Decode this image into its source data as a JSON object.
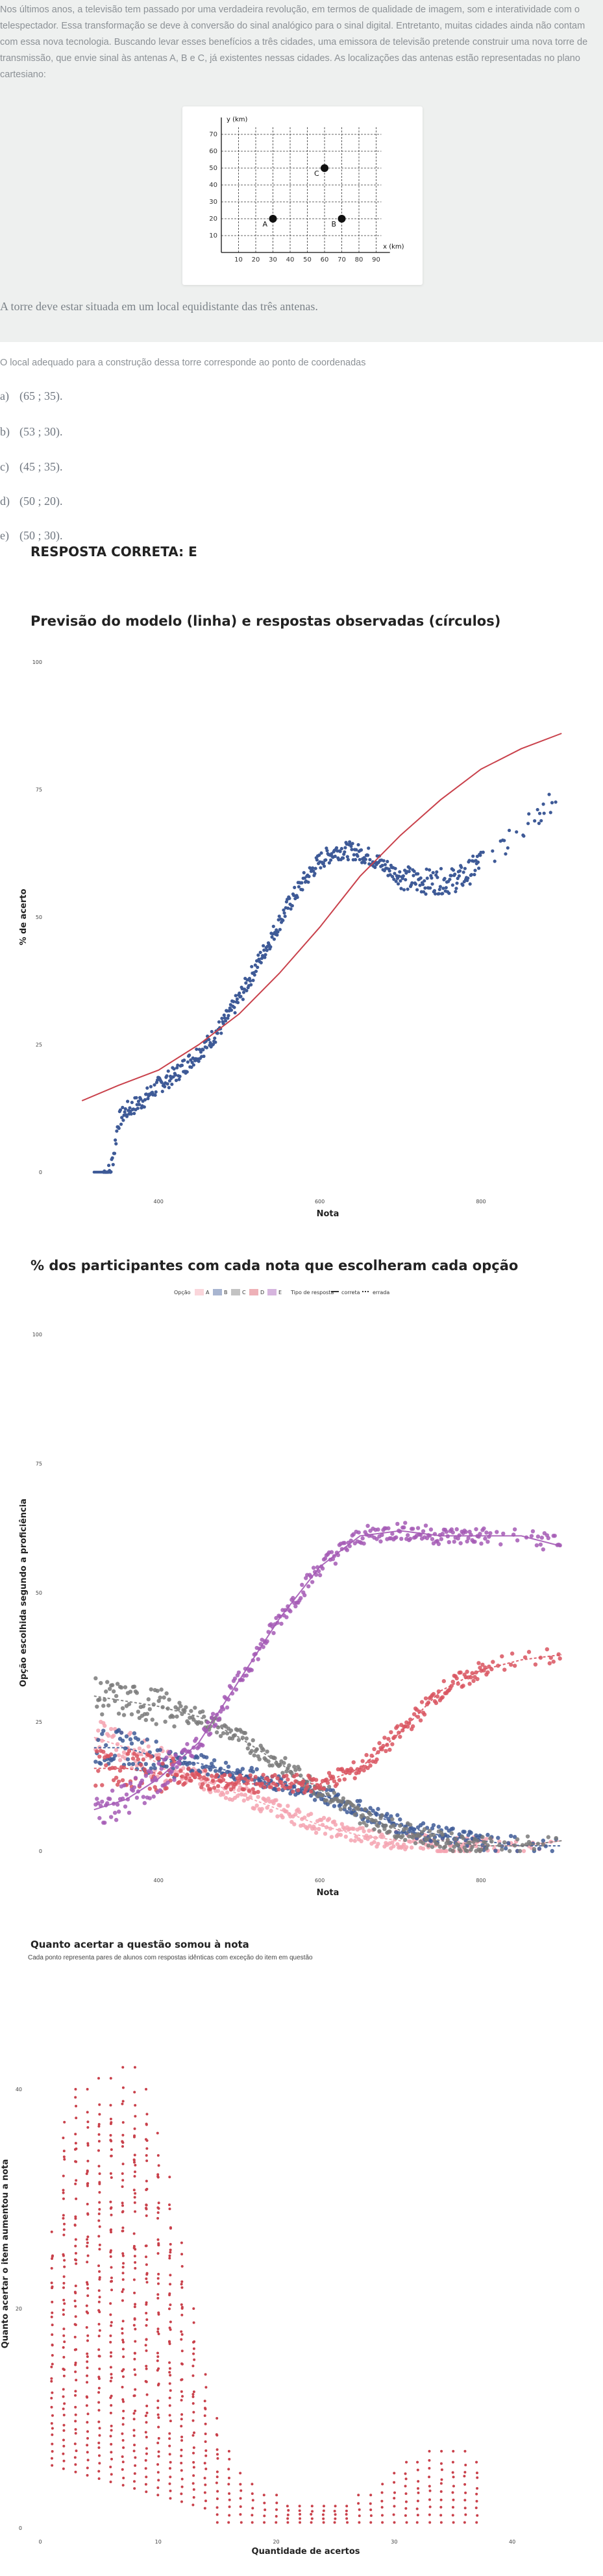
{
  "question": {
    "text": "Nos últimos anos, a televisão tem passado por uma verdadeira revolução, em termos de qualidade de imagem, som e interatividade com o telespectador. Essa transformação se deve à conversão do sinal analógico para o sinal digital. Entretanto, muitas cidades ainda não contam com essa nova tecnologia. Buscando levar esses benefícios a três cidades, uma emissora de televisão pretende construir uma nova torre de transmissão, que envie sinal às antenas A, B e C, já existentes nessas cidades. As localizações das antenas estão representadas no plano cartesiano:",
    "statement": "A torre deve estar situada em um local equidistante das três antenas.",
    "prompt": "O local adequado para a construção dessa torre corresponde ao ponto de coordenadas",
    "options": [
      {
        "letter": "a)",
        "text": "(65 ; 35)."
      },
      {
        "letter": "b)",
        "text": "(53 ; 30)."
      },
      {
        "letter": "c)",
        "text": "(45 ; 35)."
      },
      {
        "letter": "d)",
        "text": "(50 ; 20)."
      },
      {
        "letter": "e)",
        "text": "(50 ; 30)."
      }
    ],
    "correct": "RESPOSTA CORRETA: E"
  },
  "cartesian": {
    "y_axis_label": "y (km)",
    "x_axis_label": "x (km)",
    "x_ticks": [
      10,
      20,
      30,
      40,
      50,
      60,
      70,
      80,
      90
    ],
    "y_ticks": [
      10,
      20,
      30,
      40,
      50,
      60,
      70
    ],
    "points": [
      {
        "label": "A",
        "x": 30,
        "y": 20
      },
      {
        "label": "B",
        "x": 70,
        "y": 20
      },
      {
        "label": "C",
        "x": 60,
        "y": 50
      }
    ]
  },
  "chart_data": [
    {
      "type": "scatter",
      "title": "Previsão do modelo (linha) e respostas observadas (círculos)",
      "xlabel": "Nota",
      "ylabel": "% de acerto",
      "x_tick_labels": [
        "400",
        "600",
        "800"
      ],
      "y_tick_labels": [
        "0",
        "25",
        "50",
        "75",
        "100"
      ],
      "xlim": [
        300,
        920
      ],
      "ylim": [
        0,
        100
      ],
      "model_line": {
        "color": "#c9414b",
        "x": [
          305,
          350,
          400,
          450,
          500,
          550,
          600,
          650,
          700,
          750,
          800,
          850,
          900
        ],
        "y": [
          14,
          17,
          20,
          25,
          31,
          39,
          48,
          58,
          66,
          73,
          79,
          83,
          86
        ]
      },
      "observed": {
        "color": "#3e5a97",
        "x": [
          320,
          330,
          340,
          345,
          350,
          360,
          380,
          400,
          420,
          440,
          460,
          480,
          500,
          520,
          540,
          560,
          580,
          600,
          620,
          640,
          660,
          680,
          700,
          720,
          740,
          760,
          780,
          800,
          820,
          840,
          860,
          880,
          900
        ],
        "y": [
          0,
          0,
          0,
          4,
          10,
          12,
          14,
          17,
          19,
          22,
          25,
          29,
          34,
          40,
          46,
          52,
          57,
          61,
          63,
          63,
          62,
          60,
          58,
          57,
          57,
          57,
          58,
          61,
          63,
          66,
          69,
          71,
          77
        ]
      }
    },
    {
      "type": "scatter",
      "title": "% dos participantes com cada nota que escolheram cada opção",
      "xlabel": "Nota",
      "ylabel": "Opção escolhida segundo a proficiência",
      "legend": {
        "option_title": "Opção",
        "options": [
          "A",
          "B",
          "C",
          "D",
          "E"
        ],
        "type_title": "Tipo de resposta",
        "types": [
          "correta",
          "errada"
        ]
      },
      "x_tick_labels": [
        "400",
        "600",
        "800"
      ],
      "y_tick_labels": [
        "0",
        "25",
        "50",
        "75",
        "100"
      ],
      "xlim": [
        300,
        920
      ],
      "ylim": [
        0,
        100
      ],
      "x": [
        320,
        360,
        400,
        450,
        500,
        550,
        600,
        650,
        700,
        750,
        800,
        850,
        900
      ],
      "series": [
        {
          "color": "#f4a3b0",
          "values": [
            22,
            20,
            17,
            14,
            11,
            8,
            5,
            3,
            2,
            1,
            1,
            1,
            2
          ]
        },
        {
          "color": "#3e5a97",
          "values": [
            20,
            20,
            18,
            17,
            15,
            13,
            11,
            8,
            5,
            3,
            2,
            1,
            1
          ]
        },
        {
          "color": "#7a7a7a",
          "values": [
            30,
            29,
            28,
            26,
            22,
            17,
            12,
            7,
            4,
            2,
            1,
            1,
            2
          ]
        },
        {
          "color": "#d9535f",
          "values": [
            16,
            16,
            15,
            14,
            13,
            13,
            13,
            16,
            23,
            31,
            35,
            37,
            38
          ]
        },
        {
          "color": "#a45ab5",
          "values": [
            8,
            10,
            14,
            21,
            33,
            45,
            55,
            61,
            62,
            61,
            61,
            61,
            59
          ]
        }
      ]
    },
    {
      "type": "scatter",
      "title": "Quanto acertar a questão somou à nota",
      "subtitle": "Cada ponto representa pares de alunos com respostas idênticas com exceção do item em questão",
      "xlabel": "Quantidade de acertos",
      "ylabel": "Quanto acertar o item aumentou a nota",
      "x_tick_labels": [
        "0",
        "10",
        "20",
        "30",
        "40"
      ],
      "y_tick_labels": [
        "0",
        "20",
        "40"
      ],
      "xlim": [
        0,
        45
      ],
      "ylim": [
        0,
        50
      ],
      "color": "#c9414b",
      "max_by_count": [
        {
          "x": 1,
          "y": 27
        },
        {
          "x": 2,
          "y": 37
        },
        {
          "x": 3,
          "y": 40
        },
        {
          "x": 4,
          "y": 40
        },
        {
          "x": 5,
          "y": 41
        },
        {
          "x": 6,
          "y": 41
        },
        {
          "x": 7,
          "y": 42
        },
        {
          "x": 8,
          "y": 42
        },
        {
          "x": 9,
          "y": 40
        },
        {
          "x": 10,
          "y": 36
        },
        {
          "x": 11,
          "y": 32
        },
        {
          "x": 12,
          "y": 26
        },
        {
          "x": 13,
          "y": 20
        },
        {
          "x": 14,
          "y": 14
        },
        {
          "x": 15,
          "y": 10
        },
        {
          "x": 16,
          "y": 7
        },
        {
          "x": 17,
          "y": 5
        },
        {
          "x": 18,
          "y": 4
        },
        {
          "x": 19,
          "y": 3
        },
        {
          "x": 20,
          "y": 3
        },
        {
          "x": 21,
          "y": 2
        },
        {
          "x": 22,
          "y": 2
        },
        {
          "x": 23,
          "y": 2
        },
        {
          "x": 24,
          "y": 2
        },
        {
          "x": 25,
          "y": 2
        },
        {
          "x": 26,
          "y": 2
        },
        {
          "x": 27,
          "y": 3
        },
        {
          "x": 28,
          "y": 3
        },
        {
          "x": 29,
          "y": 4
        },
        {
          "x": 30,
          "y": 5
        },
        {
          "x": 31,
          "y": 6
        },
        {
          "x": 32,
          "y": 6
        },
        {
          "x": 33,
          "y": 7
        },
        {
          "x": 34,
          "y": 7
        },
        {
          "x": 35,
          "y": 7
        },
        {
          "x": 36,
          "y": 7
        },
        {
          "x": 37,
          "y": 6
        }
      ]
    }
  ]
}
